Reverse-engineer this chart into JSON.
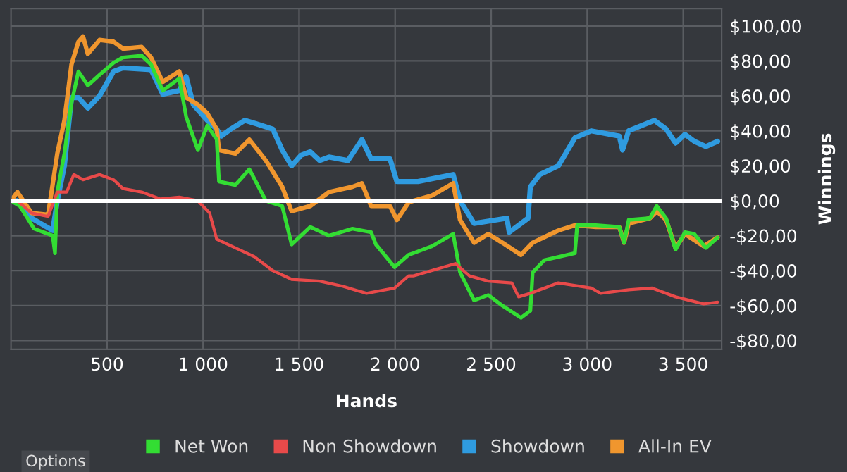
{
  "chart_data": {
    "type": "line",
    "xlabel": "Hands",
    "ylabel": "Winnings",
    "xlim": [
      0,
      3700
    ],
    "ylim": [
      -85,
      110
    ],
    "xticks": [
      500,
      {
        "value": 1000,
        "label": "1 000"
      },
      {
        "value": 1500,
        "label": "1 500"
      },
      {
        "value": 2000,
        "label": "2 000"
      },
      {
        "value": 2500,
        "label": "2 500"
      },
      {
        "value": 3000,
        "label": "3 000"
      },
      {
        "value": 3500,
        "label": "3 500"
      }
    ],
    "yticks": [
      {
        "value": -80,
        "label": "-$80,00"
      },
      {
        "value": -60,
        "label": "-$60,00"
      },
      {
        "value": -40,
        "label": "-$40,00"
      },
      {
        "value": -20,
        "label": "-$20,00"
      },
      {
        "value": 0,
        "label": "$0,00"
      },
      {
        "value": 20,
        "label": "$20,00"
      },
      {
        "value": 40,
        "label": "$40,00"
      },
      {
        "value": 60,
        "label": "$60,00"
      },
      {
        "value": 80,
        "label": "$80,00"
      },
      {
        "value": 100,
        "label": "$100,00"
      }
    ],
    "grid": true,
    "legend": "bottom",
    "marker": "none",
    "line_style": "solid",
    "ref_lines": [
      {
        "axis": "y",
        "value": 0,
        "color": "#ffffff"
      }
    ],
    "annotations": [
      "Options"
    ],
    "series": [
      {
        "name": "Showdown",
        "color": "#2f9be0",
        "x": [
          0,
          33,
          107,
          217,
          241,
          278,
          315,
          351,
          400,
          461,
          534,
          583,
          729,
          790,
          876,
          912,
          949,
          1022,
          1071,
          1095,
          1144,
          1217,
          1278,
          1363,
          1412,
          1461,
          1510,
          1558,
          1607,
          1656,
          1754,
          1827,
          1875,
          1973,
          2009,
          2119,
          2302,
          2338,
          2411,
          2582,
          2594,
          2692,
          2704,
          2753,
          2850,
          2936,
          3021,
          3167,
          3184,
          3216,
          3350,
          3411,
          3460,
          3509,
          3558,
          3618,
          3679
        ],
        "values": [
          0,
          0,
          -10,
          -17,
          0,
          20,
          59,
          59,
          53,
          60,
          74,
          76,
          75,
          61,
          63,
          71,
          55,
          46,
          41,
          37,
          41,
          46,
          44,
          41,
          29,
          20,
          26,
          28,
          23,
          25,
          23,
          35,
          24,
          24,
          11,
          11,
          15,
          0,
          -13,
          -10,
          -18,
          -10,
          8,
          15,
          20,
          36,
          40,
          37,
          29,
          40,
          46,
          41,
          33,
          38,
          34,
          31,
          34
        ]
      },
      {
        "name": "All-In EV",
        "color": "#f0962e",
        "x": [
          0,
          33,
          107,
          193,
          241,
          278,
          315,
          351,
          375,
          400,
          461,
          534,
          583,
          680,
          729,
          790,
          876,
          912,
          973,
          1022,
          1071,
          1083,
          1168,
          1241,
          1327,
          1412,
          1461,
          1558,
          1656,
          1778,
          1827,
          1875,
          1973,
          2009,
          2070,
          2095,
          2192,
          2302,
          2338,
          2411,
          2485,
          2558,
          2655,
          2716,
          2850,
          2936,
          3045,
          3167,
          3192,
          3216,
          3326,
          3362,
          3411,
          3460,
          3509,
          3606,
          3679
        ],
        "values": [
          0,
          5,
          -7,
          -8,
          27,
          46,
          78,
          91,
          94,
          84,
          92,
          91,
          87,
          88,
          82,
          68,
          74,
          59,
          55,
          50,
          41,
          29,
          27,
          35,
          23,
          8,
          -6,
          -3,
          5,
          8,
          10,
          -3,
          -3,
          -11,
          -1,
          0,
          3,
          10,
          -11,
          -24,
          -19,
          -24,
          -31,
          -24,
          -17,
          -14,
          -15,
          -15,
          -24,
          -13,
          -10,
          -6,
          -11,
          -27,
          -19,
          -26,
          -21
        ]
      },
      {
        "name": "Net Won",
        "color": "#33dd33",
        "x": [
          0,
          46,
          120,
          168,
          217,
          229,
          241,
          278,
          315,
          351,
          400,
          461,
          534,
          583,
          680,
          729,
          790,
          876,
          912,
          973,
          1022,
          1071,
          1083,
          1168,
          1241,
          1327,
          1412,
          1461,
          1558,
          1656,
          1778,
          1875,
          1900,
          1997,
          2070,
          2095,
          2192,
          2302,
          2338,
          2411,
          2485,
          2558,
          2655,
          2704,
          2716,
          2777,
          2936,
          2948,
          3045,
          3167,
          3192,
          3216,
          3326,
          3362,
          3411,
          3460,
          3509,
          3558,
          3618,
          3679
        ],
        "values": [
          0,
          -3,
          -16,
          -18,
          -20,
          -30,
          5,
          27,
          56,
          74,
          66,
          72,
          79,
          82,
          83,
          78,
          63,
          70,
          48,
          29,
          43,
          35,
          11,
          9,
          18,
          0,
          -3,
          -25,
          -15,
          -20,
          -16,
          -18,
          -25,
          -38,
          -31,
          -30,
          -26,
          -19,
          -41,
          -57,
          -54,
          -60,
          -67,
          -63,
          -41,
          -34,
          -30,
          -14,
          -14,
          -15,
          -24,
          -11,
          -10,
          -3,
          -10,
          -28,
          -18,
          -19,
          -27,
          -21
        ]
      },
      {
        "name": "Non Showdown",
        "color": "#e84a4a",
        "x": [
          0,
          33,
          107,
          193,
          241,
          290,
          327,
          375,
          461,
          534,
          583,
          680,
          778,
          876,
          973,
          1034,
          1071,
          1168,
          1266,
          1363,
          1461,
          1607,
          1729,
          1851,
          1997,
          2070,
          2095,
          2314,
          2387,
          2485,
          2607,
          2643,
          2704,
          2850,
          3021,
          3070,
          3216,
          3338,
          3460,
          3606,
          3679
        ],
        "values": [
          0,
          0,
          -7,
          -9,
          5,
          5,
          15,
          12,
          15,
          12,
          7,
          5,
          1,
          2,
          0,
          -7,
          -22,
          -27,
          -32,
          -40,
          -45,
          -46,
          -49,
          -53,
          -50,
          -43,
          -43,
          -36,
          -43,
          -46,
          -47,
          -55,
          -53,
          -47,
          -50,
          -53,
          -51,
          -50,
          -55,
          -59,
          -58
        ]
      }
    ]
  }
}
